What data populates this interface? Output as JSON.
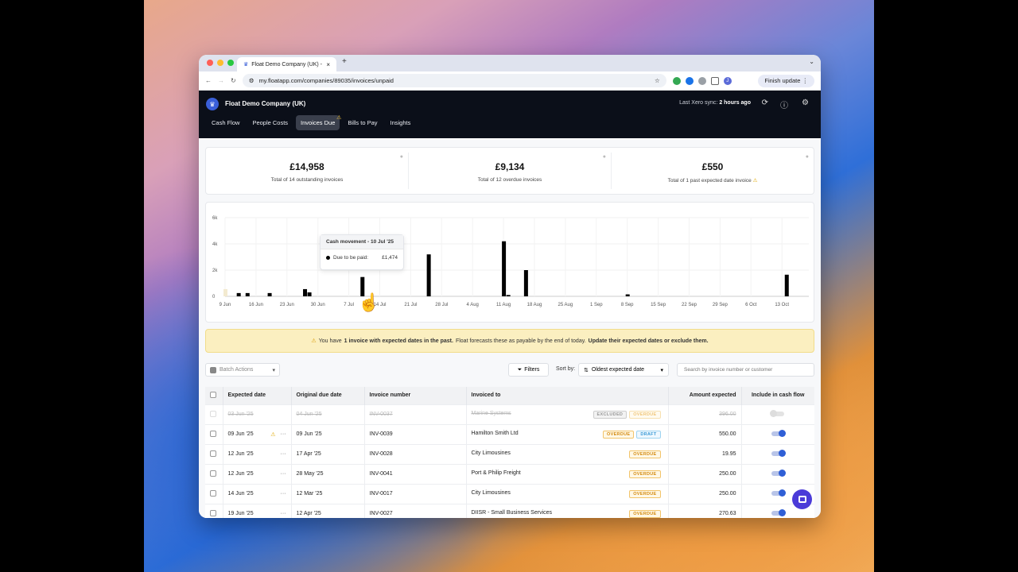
{
  "browser": {
    "tab_title": "Float Demo Company (UK) -",
    "url": "my.floatapp.com/companies/89035/invoices/unpaid",
    "finish_update": "Finish update",
    "profile_initial": "J"
  },
  "header": {
    "company": "Float Demo Company (UK)",
    "sync_label": "Last Xero sync:",
    "sync_time": "2 hours ago",
    "nav": [
      "Cash Flow",
      "People Costs",
      "Invoices Due",
      "Bills to Pay",
      "Insights"
    ],
    "active_nav": "Invoices Due"
  },
  "summary": [
    {
      "value": "£14,958",
      "label": "Total of 14 outstanding invoices"
    },
    {
      "value": "£9,134",
      "label": "Total of 12 overdue invoices"
    },
    {
      "value": "£550",
      "label": "Total of 1 past expected date invoice"
    }
  ],
  "chart_data": {
    "type": "bar",
    "y_ticks": [
      "6k",
      "4k",
      "2k",
      "0"
    ],
    "ylim": [
      0,
      6000
    ],
    "x_labels": [
      "9 Jun",
      "16 Jun",
      "23 Jun",
      "30 Jun",
      "7 Jul",
      "14 Jul",
      "21 Jul",
      "28 Jul",
      "4 Aug",
      "11 Aug",
      "18 Aug",
      "25 Aug",
      "1 Sep",
      "8 Sep",
      "15 Sep",
      "22 Sep",
      "29 Sep",
      "6 Oct",
      "13 Oct"
    ],
    "start_date": "2025-06-09",
    "bars": [
      {
        "day": 0,
        "value": 550,
        "excluded": true
      },
      {
        "day": 3,
        "value": 250
      },
      {
        "day": 5,
        "value": 250
      },
      {
        "day": 10,
        "value": 250
      },
      {
        "day": 18,
        "value": 550
      },
      {
        "day": 19,
        "value": 300
      },
      {
        "day": 31,
        "value": 1474
      },
      {
        "day": 46,
        "value": 3200
      },
      {
        "day": 63,
        "value": 4200
      },
      {
        "day": 64,
        "value": 100
      },
      {
        "day": 68,
        "value": 2000
      },
      {
        "day": 91,
        "value": 150
      },
      {
        "day": 127,
        "value": 1650
      }
    ]
  },
  "tooltip": {
    "title": "Cash movement - 10 Jul '25",
    "row_label": "Due to be paid:",
    "row_value": "£1,474"
  },
  "banner": {
    "pre": "You have",
    "bold1": "1 invoice with expected dates in the past.",
    "mid": "Float forecasts these as payable by the end of today.",
    "bold2": "Update their expected dates or exclude them."
  },
  "toolbar": {
    "batch_actions": "Batch Actions",
    "filters": "Filters",
    "sort_by": "Sort by:",
    "sort_value": "Oldest expected date",
    "search_placeholder": "Search by invoice number or customer"
  },
  "table": {
    "columns": [
      "Expected date",
      "Original due date",
      "Invoice number",
      "Invoiced to",
      "Amount expected",
      "Include in cash flow"
    ],
    "rows": [
      {
        "expected": "03 Jun '25",
        "original": "04 Jun '25",
        "number": "INV-0037",
        "to": "Marine Systems",
        "badges": [
          "EXCLUDED",
          "OVERDUE"
        ],
        "amount": "396.00",
        "excluded": true,
        "warn": false
      },
      {
        "expected": "09 Jun '25",
        "original": "09 Jun '25",
        "number": "INV-0039",
        "to": "Hamilton Smith Ltd",
        "badges": [
          "OVERDUE",
          "DRAFT"
        ],
        "amount": "550.00",
        "excluded": false,
        "warn": true
      },
      {
        "expected": "12 Jun '25",
        "original": "17 Apr '25",
        "number": "INV-0028",
        "to": "City Limousines",
        "badges": [
          "OVERDUE"
        ],
        "amount": "19.95",
        "excluded": false,
        "warn": false
      },
      {
        "expected": "12 Jun '25",
        "original": "28 May '25",
        "number": "INV-0041",
        "to": "Port & Philip Freight",
        "badges": [
          "OVERDUE"
        ],
        "amount": "250.00",
        "excluded": false,
        "warn": false
      },
      {
        "expected": "14 Jun '25",
        "original": "12 Mar '25",
        "number": "INV-0017",
        "to": "City Limousines",
        "badges": [
          "OVERDUE"
        ],
        "amount": "250.00",
        "excluded": false,
        "warn": false
      },
      {
        "expected": "19 Jun '25",
        "original": "12 Apr '25",
        "number": "INV-0027",
        "to": "DIISR - Small Business Services",
        "badges": [
          "OVERDUE"
        ],
        "amount": "270.63",
        "excluded": false,
        "warn": false
      }
    ]
  }
}
